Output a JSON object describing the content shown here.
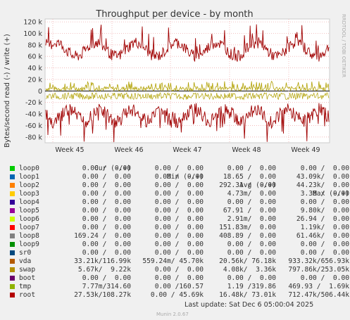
{
  "chart_data": {
    "type": "line",
    "title": "Throughput per device - by month",
    "ylabel": "Bytes/second read (-) / write (+)",
    "side_label": "RRDTOOL / TOBI OETIKER",
    "ylim": [
      -90000,
      125000
    ],
    "y_ticks": [
      {
        "value": 120000,
        "label": "120 k"
      },
      {
        "value": 100000,
        "label": "100 k"
      },
      {
        "value": 80000,
        "label": "80 k"
      },
      {
        "value": 60000,
        "label": "60 k"
      },
      {
        "value": 40000,
        "label": "40 k"
      },
      {
        "value": 20000,
        "label": "20 k"
      },
      {
        "value": 0,
        "label": "0"
      },
      {
        "value": -20000,
        "label": "-20 k"
      },
      {
        "value": -40000,
        "label": "-40 k"
      },
      {
        "value": -60000,
        "label": "-60 k"
      },
      {
        "value": -80000,
        "label": "-80 k"
      }
    ],
    "x_ticks": [
      "Week 45",
      "Week 46",
      "Week 47",
      "Week 48",
      "Week 49"
    ],
    "series": [
      {
        "name": "root",
        "color": "#a00000",
        "write_approx": [
          75000,
          110000,
          60000,
          75000,
          100000
        ],
        "read_approx": [
          -30000,
          -60000,
          -45000,
          -75000,
          -50000
        ]
      },
      {
        "name": "tmp",
        "color": "#b0a000",
        "write_approx": [
          5000,
          10000,
          5000,
          15000,
          10000
        ]
      },
      {
        "name": "vda",
        "color": "#c06000"
      },
      {
        "name": "swap",
        "color": "#f0a000"
      }
    ]
  },
  "legend": {
    "headers": {
      "cur": "Cur (-/+)",
      "min": "Min (-/+)",
      "avg": "Avg (-/+)",
      "max": "Max (-/+)"
    },
    "rows": [
      {
        "name": "loop0",
        "color": "#00cc00",
        "cur": "0.00 /  0.00",
        "min": "0.00 /  0.00",
        "avg": "0.00 /  0.00",
        "max": "0.00 /  0.00"
      },
      {
        "name": "loop1",
        "color": "#0066b3",
        "cur": "0.00 /  0.00",
        "min": "0.00 /  0.00",
        "avg": "18.65 /  0.00",
        "max": "43.09k/  0.00"
      },
      {
        "name": "loop2",
        "color": "#ff8000",
        "cur": "0.00 /  0.00",
        "min": "0.00 /  0.00",
        "avg": "292.31 /  0.00",
        "max": "44.23k/  0.00"
      },
      {
        "name": "loop3",
        "color": "#ffcc00",
        "cur": "0.00 /  0.00",
        "min": "0.00 /  0.00",
        "avg": "4.73m/  0.00",
        "max": "3.38 /  0.00"
      },
      {
        "name": "loop4",
        "color": "#330099",
        "cur": "0.00 /  0.00",
        "min": "0.00 /  0.00",
        "avg": "0.00 /  0.00",
        "max": "0.00 /  0.00"
      },
      {
        "name": "loop5",
        "color": "#990099",
        "cur": "0.00 /  0.00",
        "min": "0.00 /  0.00",
        "avg": "67.91 /  0.00",
        "max": "9.80k/  0.00"
      },
      {
        "name": "loop6",
        "color": "#ccff00",
        "cur": "0.00 /  0.00",
        "min": "0.00 /  0.00",
        "avg": "2.91m/  0.00",
        "max": "26.94 /  0.00"
      },
      {
        "name": "loop7",
        "color": "#ff0000",
        "cur": "0.00 /  0.00",
        "min": "0.00 /  0.00",
        "avg": "151.83m/  0.00",
        "max": "1.19k/  0.00"
      },
      {
        "name": "loop8",
        "color": "#808080",
        "cur": "169.24 /  0.00",
        "min": "0.00 /  0.00",
        "avg": "408.89 /  0.00",
        "max": "61.46k/  0.00"
      },
      {
        "name": "loop9",
        "color": "#008f00",
        "cur": "0.00 /  0.00",
        "min": "0.00 /  0.00",
        "avg": "0.00 /  0.00",
        "max": "0.00 /  0.00"
      },
      {
        "name": "sr0",
        "color": "#00487d",
        "cur": "0.00 /  0.00",
        "min": "0.00 /  0.00",
        "avg": "0.00 /  0.00",
        "max": "0.00 /  0.00"
      },
      {
        "name": "vda",
        "color": "#b35a00",
        "cur": "33.21k/116.99k",
        "min": "559.24m/ 45.70k",
        "avg": "20.56k/ 76.18k",
        "max": "933.32k/656.93k"
      },
      {
        "name": "swap",
        "color": "#b38f00",
        "cur": "5.67k/  9.22k",
        "min": "0.00 /  0.00",
        "avg": "4.08k/  3.36k",
        "max": "797.86k/253.05k"
      },
      {
        "name": "boot",
        "color": "#6b006b",
        "cur": "0.00 /  0.00",
        "min": "0.00 /  0.00",
        "avg": "0.00 /  0.00",
        "max": "0.00 /  0.00"
      },
      {
        "name": "tmp",
        "color": "#8fb300",
        "cur": "7.77m/314.60",
        "min": "0.00 /160.57",
        "avg": "1.19 /319.86",
        "max": "469.93 /  1.69k"
      },
      {
        "name": "root",
        "color": "#b30000",
        "cur": "27.53k/108.27k",
        "min": "0.00 / 45.69k",
        "avg": "16.48k/ 73.01k",
        "max": "712.47k/506.44k"
      }
    ]
  },
  "footer": {
    "last_update": "Last update: Sat Dec  6 05:00:04 2025",
    "version": "Munin 2.0.67"
  }
}
